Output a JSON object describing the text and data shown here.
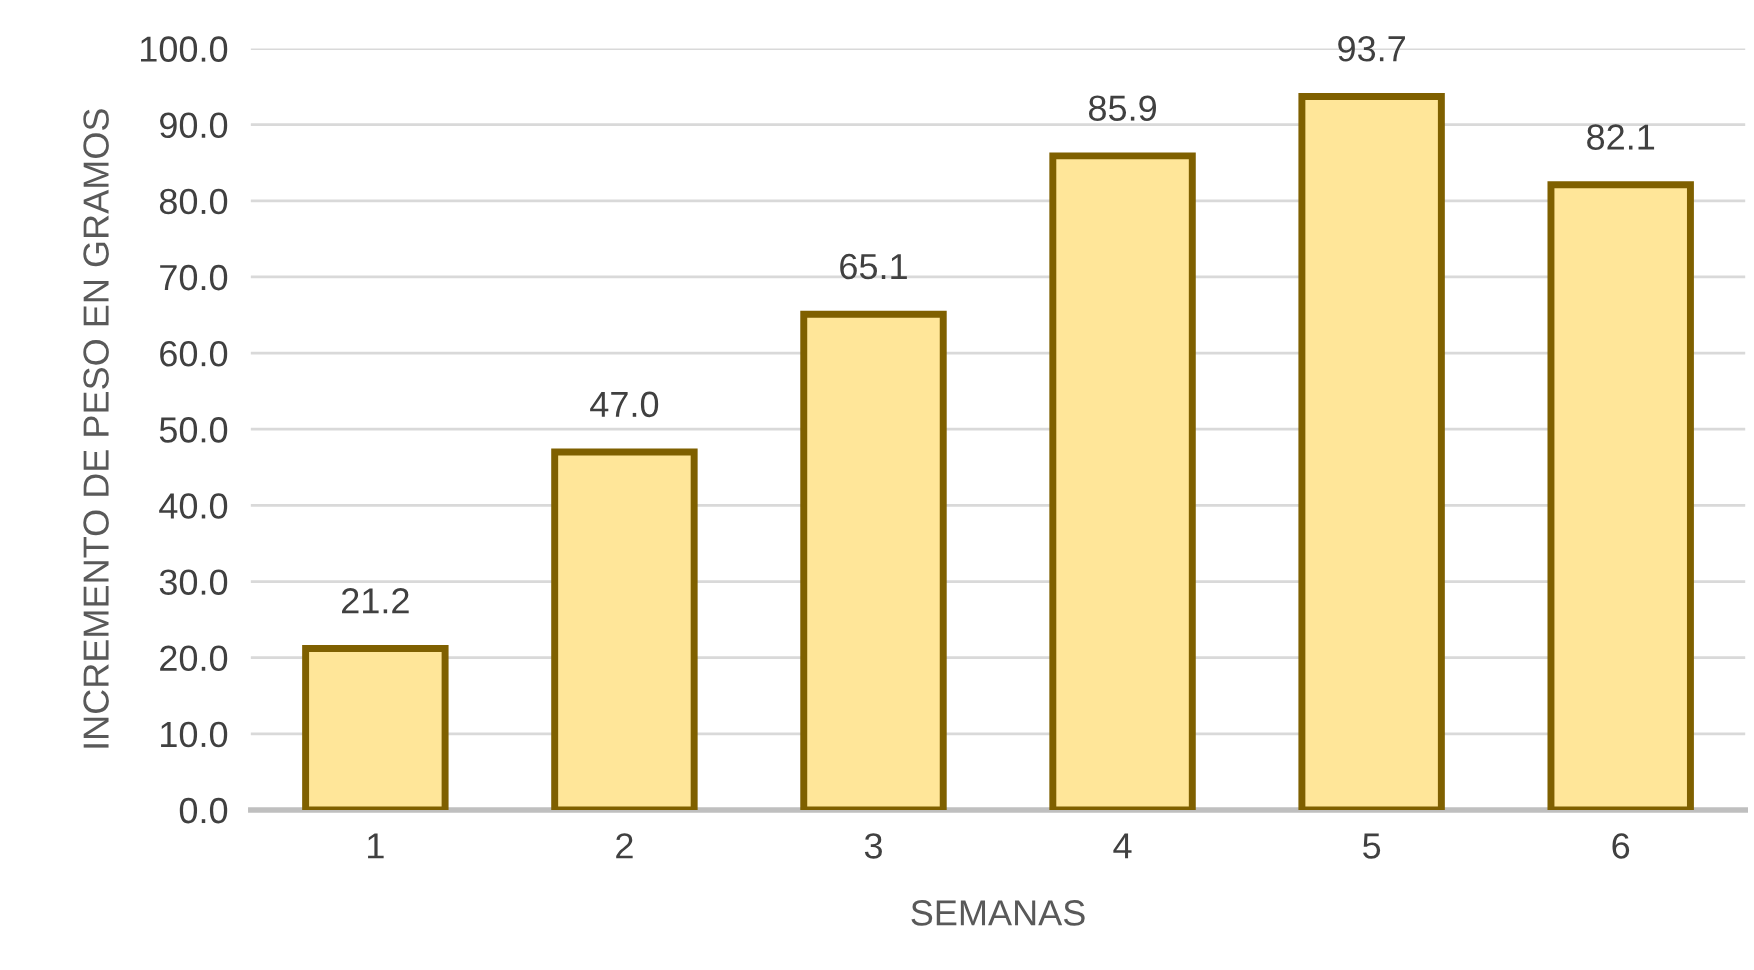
{
  "chart_data": {
    "type": "bar",
    "xlabel": "SEMANAS",
    "ylabel": "INCREMENTO DE PESO EN GRAMOS",
    "categories": [
      "1",
      "2",
      "3",
      "4",
      "5",
      "6"
    ],
    "values": [
      21.2,
      47.0,
      65.1,
      85.9,
      93.7,
      82.1
    ],
    "color": "#ffe699",
    "ylim": [
      0,
      100
    ],
    "yticks": [
      {
        "value": 0,
        "label": "0.0"
      },
      {
        "value": 10,
        "label": "10.0"
      },
      {
        "value": 20,
        "label": "20.0"
      },
      {
        "value": 30,
        "label": "30.0"
      },
      {
        "value": 40,
        "label": "40.0"
      },
      {
        "value": 50,
        "label": "50.0"
      },
      {
        "value": 60,
        "label": "60.0"
      },
      {
        "value": 70,
        "label": "70.0"
      },
      {
        "value": 80,
        "label": "80.0"
      },
      {
        "value": 90,
        "label": "90.0"
      },
      {
        "value": 100,
        "label": "100.0"
      }
    ],
    "value_labels": [
      "21.2",
      "47.0",
      "65.1",
      "85.9",
      "93.7",
      "82.1"
    ],
    "grid": "y",
    "legend": false
  }
}
